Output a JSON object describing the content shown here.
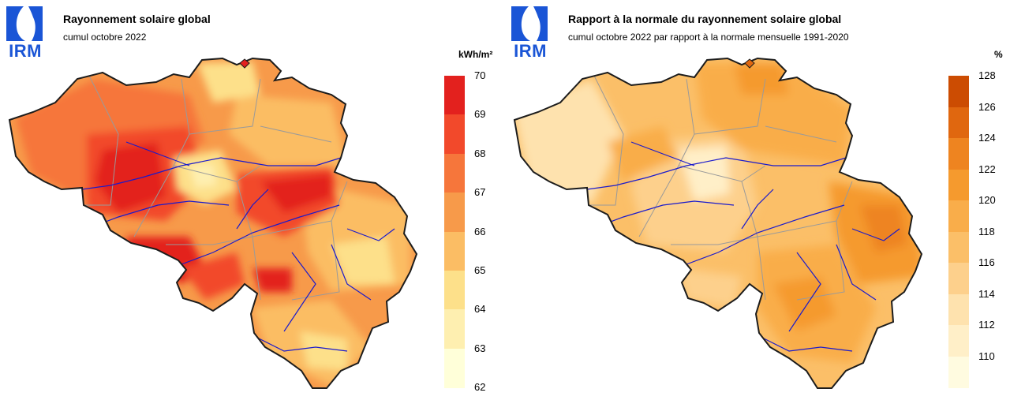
{
  "colors": {
    "logo": "#1a55d6",
    "border": "#1c1c1c",
    "provinces": "#9a9a9a",
    "rivers": "#1a1acc"
  },
  "panels": [
    {
      "id": "left",
      "logo_text": "IRM",
      "title": "Rayonnement solaire global",
      "subtitle": "cumul octobre 2022",
      "legend": {
        "unit": "kWh/m²",
        "ticks": [
          "70",
          "69",
          "68",
          "67",
          "66",
          "65",
          "64",
          "63",
          "62"
        ],
        "colors": [
          "#e3211e",
          "#f2492b",
          "#f6763b",
          "#f79a4a",
          "#fbbd64",
          "#fde08a",
          "#feefb0",
          "#ffffd9"
        ]
      }
    },
    {
      "id": "right",
      "logo_text": "IRM",
      "title": "Rapport à la normale du rayonnement solaire global",
      "subtitle": "cumul octobre 2022 par rapport à la normale mensuelle 1991-2020",
      "legend": {
        "unit": "%",
        "ticks": [
          "128",
          "126",
          "124",
          "122",
          "120",
          "118",
          "116",
          "114",
          "112",
          "110"
        ],
        "colors": [
          "#cc4c02",
          "#e0670f",
          "#ee8420",
          "#f59a2e",
          "#f9ad4a",
          "#fbbf68",
          "#fdd08c",
          "#fee2ae",
          "#ffefc8",
          "#fffbe0"
        ]
      }
    }
  ]
}
